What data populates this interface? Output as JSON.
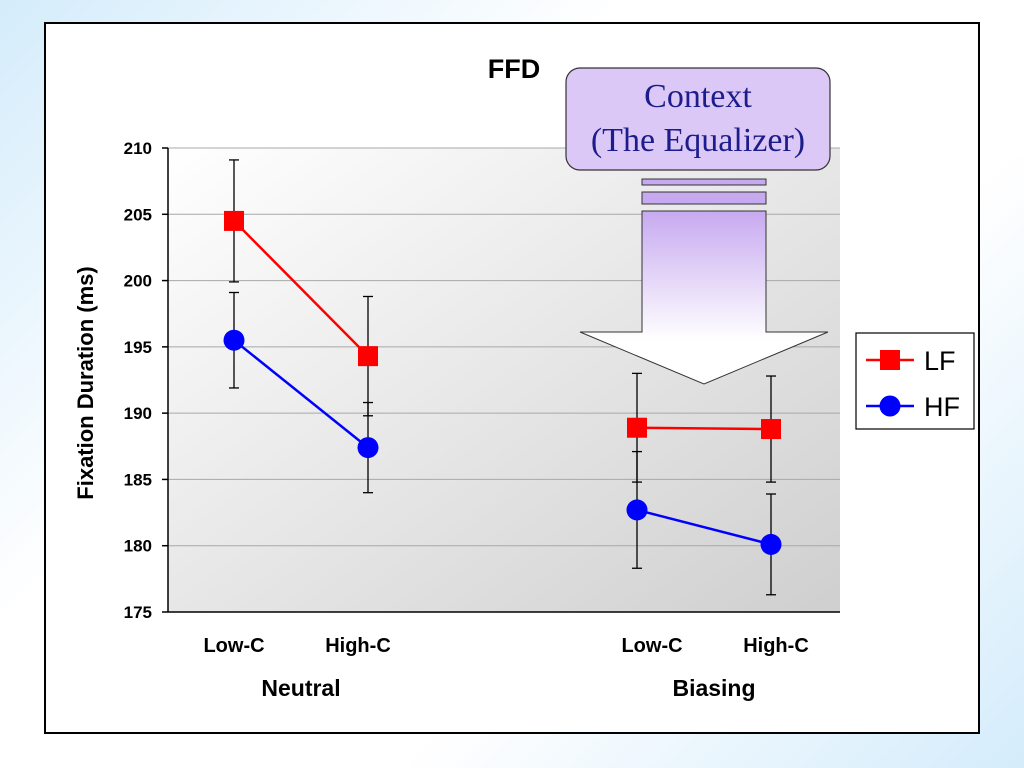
{
  "slide": {
    "callout": {
      "line1": "Context",
      "line2": "(The Equalizer)"
    }
  },
  "chart_data": {
    "type": "line",
    "title": "FFD",
    "xlabel": "",
    "ylabel": "Fixation Duration (ms)",
    "ylim": [
      175,
      210
    ],
    "yticks": [
      175,
      180,
      185,
      190,
      195,
      200,
      205,
      210
    ],
    "grid": true,
    "legend_position": "right",
    "groups": [
      {
        "name": "Neutral",
        "categories": [
          "Low-C",
          "High-C"
        ]
      },
      {
        "name": "Biasing",
        "categories": [
          "Low-C",
          "High-C"
        ]
      }
    ],
    "series": [
      {
        "name": "LF",
        "color": "#ff0000",
        "marker": "square",
        "values": [
          [
            204.5,
            194.3
          ],
          [
            188.9,
            188.8
          ]
        ],
        "error": [
          [
            4.6,
            4.5
          ],
          [
            4.1,
            4.0
          ]
        ]
      },
      {
        "name": "HF",
        "color": "#0000ff",
        "marker": "circle",
        "values": [
          [
            195.5,
            187.4
          ],
          [
            182.7,
            180.1
          ]
        ],
        "error": [
          [
            3.6,
            3.4
          ],
          [
            4.4,
            3.8
          ]
        ]
      }
    ]
  }
}
